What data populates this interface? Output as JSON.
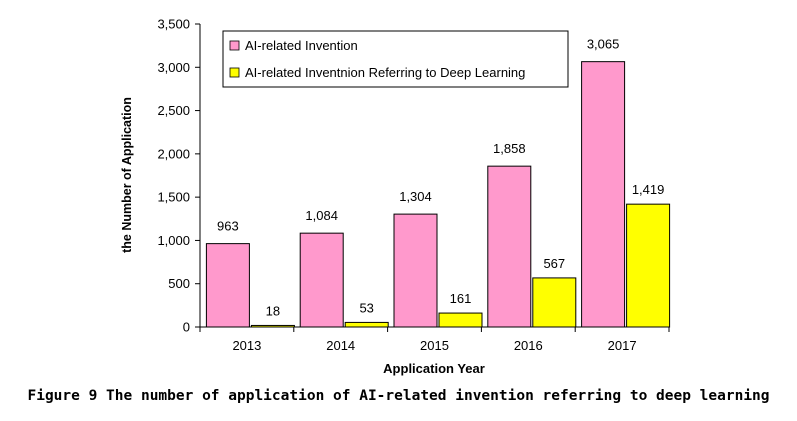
{
  "chart_data": {
    "type": "bar",
    "categories": [
      "2013",
      "2014",
      "2015",
      "2016",
      "2017"
    ],
    "series": [
      {
        "name": "AI-related Invention",
        "values": [
          963,
          1084,
          1304,
          1858,
          3065
        ],
        "labels": [
          "963",
          "1,084",
          "1,304",
          "1,858",
          "3,065"
        ],
        "color": "#ff99cc"
      },
      {
        "name": "AI-related Inventnion Referring to Deep Learning",
        "values": [
          18,
          53,
          161,
          567,
          1419
        ],
        "labels": [
          "18",
          "53",
          "161",
          "567",
          "1,419"
        ],
        "color": "#ffff00"
      }
    ],
    "xlabel": "Application Year",
    "ylabel": "the Number of Application",
    "ylim": [
      0,
      3500
    ],
    "yticks": [
      0,
      500,
      1000,
      1500,
      2000,
      2500,
      3000,
      3500
    ],
    "ytick_labels": [
      "0",
      "500",
      "1,000",
      "1,500",
      "2,000",
      "2,500",
      "3,000",
      "3,500"
    ],
    "grid": false,
    "legend": "top-left"
  },
  "figure": {
    "caption": "Figure 9  The number of application of AI-related invention referring to deep learning"
  }
}
